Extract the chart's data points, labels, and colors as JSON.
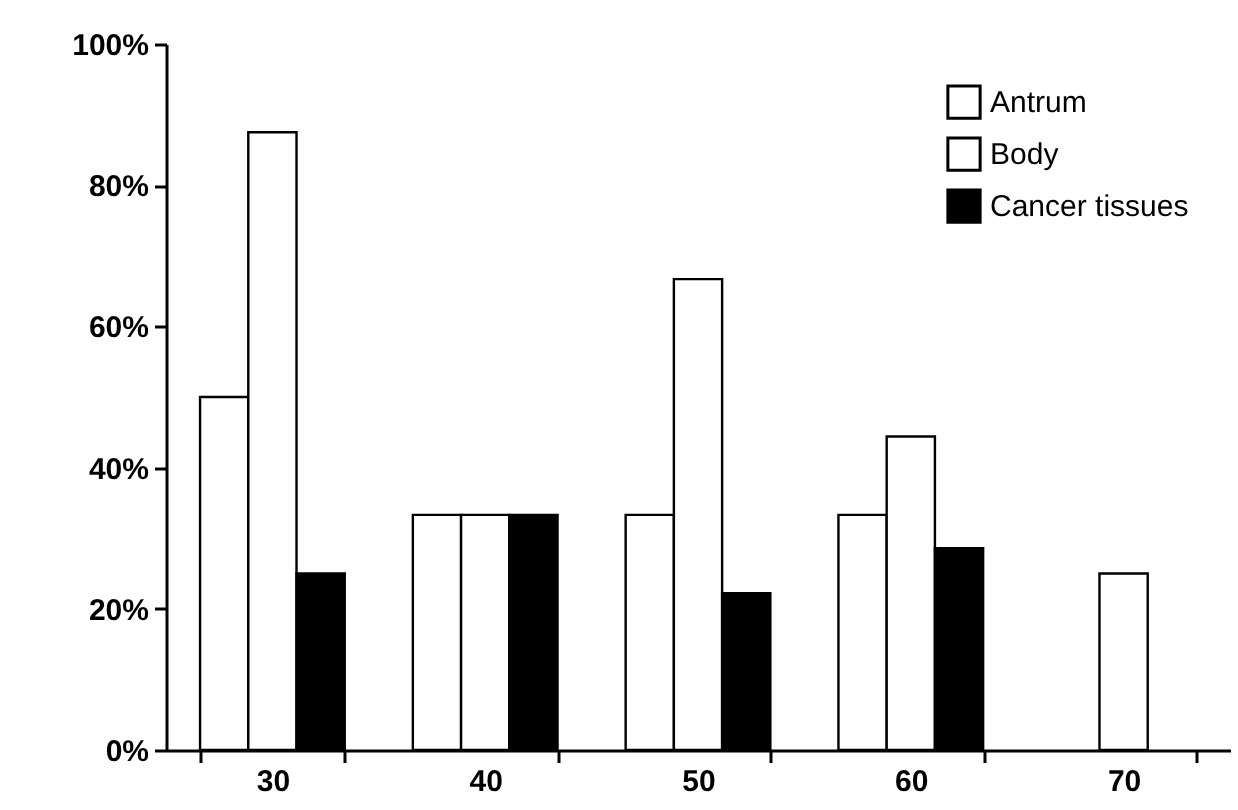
{
  "chart_data": {
    "type": "bar",
    "categories": [
      "30",
      "40",
      "50",
      "60",
      "70"
    ],
    "series": [
      {
        "name": "Antrum",
        "color": "#ffffff",
        "values": [
          50,
          33.3,
          33.3,
          33.3,
          null
        ]
      },
      {
        "name": "Body",
        "color": "#ffffff",
        "values": [
          87.5,
          33.3,
          66.7,
          44.4,
          25
        ]
      },
      {
        "name": "Cancer tissues",
        "color": "#000000",
        "values": [
          25,
          33.3,
          22.2,
          28.6,
          null
        ]
      }
    ],
    "ylim": [
      0,
      100
    ],
    "yticks": [
      {
        "value": 0,
        "label": "0%"
      },
      {
        "value": 20,
        "label": "20%"
      },
      {
        "value": 40,
        "label": "40%"
      },
      {
        "value": 60,
        "label": "60%"
      },
      {
        "value": 80,
        "label": "80%"
      },
      {
        "value": 100,
        "label": "100%"
      }
    ],
    "grid": false,
    "legend": "top right"
  }
}
